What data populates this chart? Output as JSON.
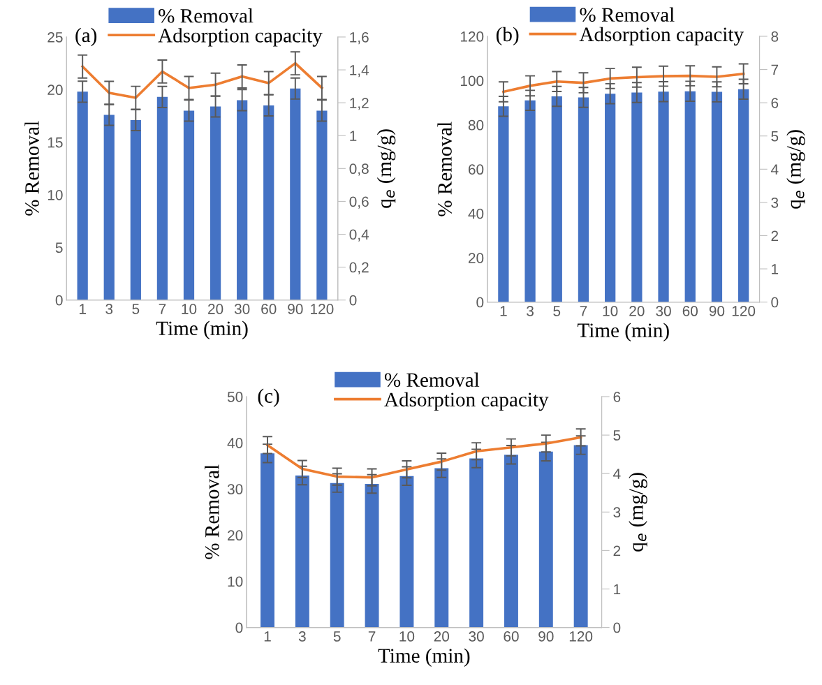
{
  "chart_data": [
    {
      "type": "bar",
      "annotations": [
        "(a)"
      ],
      "xlabel": "Time (min)",
      "ylabel": "% Removal",
      "y2label": "q$_{e}$ (mg/g)",
      "categories": [
        "1",
        "3",
        "5",
        "7",
        "10",
        "20",
        "30",
        "60",
        "90",
        "120"
      ],
      "series": [
        {
          "name": "% Removal",
          "color": "#4472c4",
          "values": [
            19.8,
            17.6,
            17.1,
            19.3,
            18.0,
            18.4,
            19.0,
            18.5,
            20.1,
            18.0
          ],
          "errors": [
            1.0,
            1.0,
            1.0,
            1.0,
            1.0,
            1.0,
            1.0,
            1.0,
            1.0,
            1.0
          ]
        },
        {
          "name": "Adsorption capacity",
          "type": "line",
          "axis": "y2",
          "color": "#ed7d31",
          "values": [
            1.42,
            1.26,
            1.23,
            1.39,
            1.29,
            1.31,
            1.36,
            1.32,
            1.44,
            1.29
          ],
          "errors": [
            0.07,
            0.07,
            0.07,
            0.07,
            0.07,
            0.07,
            0.07,
            0.07,
            0.07,
            0.07
          ]
        }
      ],
      "ylim": [
        0,
        25
      ],
      "yticks": [
        0,
        5,
        10,
        15,
        20,
        25
      ],
      "y2lim": [
        0,
        1.6
      ],
      "y2ticks": [
        0,
        {
          "value": 0.2,
          "label": "0,2"
        },
        {
          "value": 0.4,
          "label": "0,4"
        },
        {
          "value": 0.6,
          "label": "0,6"
        },
        {
          "value": 0.8,
          "label": "0,8"
        },
        1,
        {
          "value": 1.2,
          "label": "1,2"
        },
        {
          "value": 1.4,
          "label": "1,4"
        },
        {
          "value": 1.6,
          "label": "1,6"
        }
      ],
      "legend": "top",
      "grid": false
    },
    {
      "type": "bar",
      "annotations": [
        "(b)"
      ],
      "xlabel": "Time (min)",
      "ylabel": "% Removal",
      "y2label": "q$_{e}$ (mg/g)",
      "categories": [
        "1",
        "3",
        "5",
        "7",
        "10",
        "20",
        "30",
        "60",
        "90",
        "120"
      ],
      "series": [
        {
          "name": "% Removal",
          "color": "#4472c4",
          "values": [
            88.4,
            91.1,
            92.9,
            92.4,
            94.1,
            94.6,
            95.0,
            95.2,
            94.9,
            96.1
          ],
          "errors": [
            4.5,
            4.5,
            4.5,
            4.5,
            4.5,
            4.5,
            4.5,
            4.5,
            4.5,
            4.5
          ]
        },
        {
          "name": "Adsorption capacity",
          "type": "line",
          "axis": "y2",
          "color": "#ed7d31",
          "values": [
            6.33,
            6.51,
            6.64,
            6.6,
            6.73,
            6.77,
            6.8,
            6.81,
            6.78,
            6.87
          ],
          "errors": [
            0.3,
            0.3,
            0.3,
            0.3,
            0.3,
            0.3,
            0.3,
            0.3,
            0.3,
            0.3
          ]
        }
      ],
      "ylim": [
        0,
        120
      ],
      "yticks": [
        0,
        20,
        40,
        60,
        80,
        100,
        120
      ],
      "y2lim": [
        0,
        8
      ],
      "y2ticks": [
        0,
        1,
        2,
        3,
        4,
        5,
        6,
        7,
        8
      ],
      "legend": "top",
      "grid": false
    },
    {
      "type": "bar",
      "annotations": [
        "(c)"
      ],
      "xlabel": "Time (min)",
      "ylabel": "% Removal",
      "y2label": "q$_{e}$ (mg/g)",
      "categories": [
        "1",
        "3",
        "5",
        "7",
        "10",
        "20",
        "30",
        "60",
        "90",
        "120"
      ],
      "series": [
        {
          "name": "% Removal",
          "color": "#4472c4",
          "values": [
            37.7,
            32.9,
            31.3,
            31.1,
            32.8,
            34.5,
            36.6,
            37.4,
            38.1,
            39.5
          ],
          "errors": [
            2,
            2,
            2,
            2,
            2,
            2,
            2,
            2,
            2,
            2
          ]
        },
        {
          "name": "Adsorption capacity",
          "type": "line",
          "axis": "y2",
          "color": "#ed7d31",
          "values": [
            4.74,
            4.12,
            3.92,
            3.9,
            4.11,
            4.31,
            4.58,
            4.68,
            4.78,
            4.94
          ],
          "errors": [
            0.22,
            0.22,
            0.22,
            0.22,
            0.22,
            0.22,
            0.22,
            0.22,
            0.22,
            0.22
          ]
        }
      ],
      "ylim": [
        0,
        50
      ],
      "yticks": [
        0,
        10,
        20,
        30,
        40,
        50
      ],
      "y2lim": [
        0,
        6
      ],
      "y2ticks": [
        0,
        1,
        2,
        3,
        4,
        5,
        6
      ],
      "legend": "top",
      "grid": false
    }
  ]
}
